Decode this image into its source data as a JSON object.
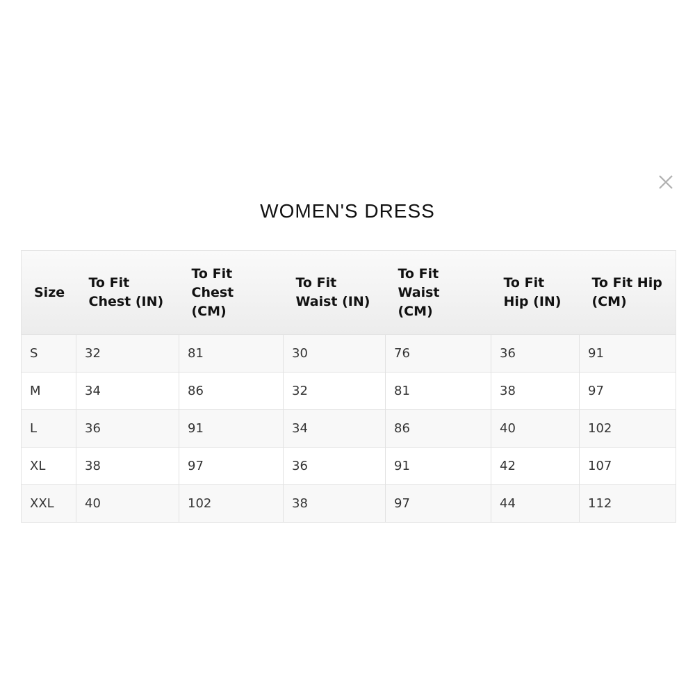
{
  "modal": {
    "title": "WOMEN'S DRESS",
    "close_icon": "close-icon"
  },
  "table": {
    "headers": [
      "Size",
      "To Fit Chest (IN)",
      "To Fit Chest (CM)",
      "To Fit Waist (IN)",
      "To Fit Waist (CM)",
      "To Fit Hip (IN)",
      "To Fit Hip (CM)"
    ],
    "rows": [
      [
        "S",
        "32",
        "81",
        "30",
        "76",
        "36",
        "91"
      ],
      [
        "M",
        "34",
        "86",
        "32",
        "81",
        "38",
        "97"
      ],
      [
        "L",
        "36",
        "91",
        "34",
        "86",
        "40",
        "102"
      ],
      [
        "XL",
        "38",
        "97",
        "36",
        "91",
        "42",
        "107"
      ],
      [
        "XXL",
        "40",
        "102",
        "38",
        "97",
        "44",
        "112"
      ]
    ]
  }
}
